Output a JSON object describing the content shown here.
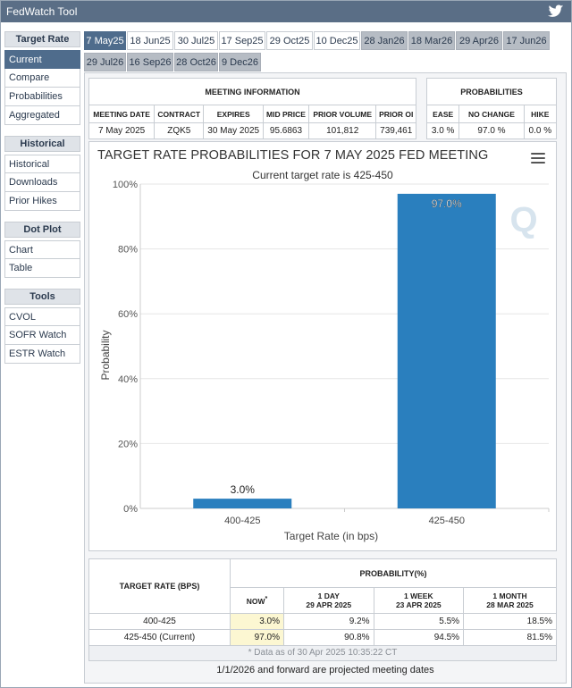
{
  "app": {
    "title": "FedWatch Tool"
  },
  "sidebar": {
    "groups": [
      {
        "header": "Target Rate",
        "items": [
          "Current",
          "Compare",
          "Probabilities",
          "Aggregated"
        ]
      },
      {
        "header": "Historical",
        "items": [
          "Historical",
          "Downloads",
          "Prior Hikes"
        ]
      },
      {
        "header": "Dot Plot",
        "items": [
          "Chart",
          "Table"
        ]
      },
      {
        "header": "Tools",
        "items": [
          "CVOL",
          "SOFR Watch",
          "ESTR Watch"
        ]
      }
    ]
  },
  "tabs": [
    "7 May25",
    "18 Jun25",
    "30 Jul25",
    "17 Sep25",
    "29 Oct25",
    "10 Dec25",
    "28 Jan26",
    "18 Mar26",
    "29 Apr26",
    "17 Jun26",
    "29 Jul26",
    "16 Sep26",
    "28 Oct26",
    "9 Dec26"
  ],
  "meeting_info": {
    "header": "MEETING INFORMATION",
    "columns": [
      "MEETING DATE",
      "CONTRACT",
      "EXPIRES",
      "MID PRICE",
      "PRIOR VOLUME",
      "PRIOR OI"
    ],
    "values": [
      "7 May 2025",
      "ZQK5",
      "30 May 2025",
      "95.6863",
      "101,812",
      "739,461"
    ]
  },
  "probabilities": {
    "header": "PROBABILITIES",
    "columns": [
      "EASE",
      "NO CHANGE",
      "HIKE"
    ],
    "values": [
      "3.0 %",
      "97.0 %",
      "0.0 %"
    ]
  },
  "chart_data": {
    "type": "bar",
    "title": "TARGET RATE PROBABILITIES FOR 7 MAY 2025 FED MEETING",
    "subtitle": "Current target rate is 425-450",
    "xlabel": "Target Rate (in bps)",
    "ylabel": "Probability",
    "categories": [
      "400-425",
      "425-450"
    ],
    "values": [
      3.0,
      97.0
    ],
    "data_labels": [
      "3.0%",
      "97.0%"
    ],
    "ylim": [
      0,
      100
    ],
    "yticks": [
      "0%",
      "20%",
      "40%",
      "60%",
      "80%",
      "100%"
    ],
    "ytick_values": [
      0,
      20,
      40,
      60,
      80,
      100
    ],
    "bar_color": "#2a7fbe",
    "grid": true
  },
  "bottom_table": {
    "col_target": "TARGET RATE (BPS)",
    "col_probability": "PROBABILITY(%)",
    "sub": [
      {
        "label": "NOW",
        "sub": "",
        "mark": "*"
      },
      {
        "label": "1 DAY",
        "sub": "29 APR 2025"
      },
      {
        "label": "1 WEEK",
        "sub": "23 APR 2025"
      },
      {
        "label": "1 MONTH",
        "sub": "28 MAR 2025"
      }
    ],
    "rows": [
      {
        "rate": "400-425",
        "now": "3.0%",
        "d1": "9.2%",
        "w1": "5.5%",
        "m1": "18.5%"
      },
      {
        "rate": "425-450 (Current)",
        "now": "97.0%",
        "d1": "90.8%",
        "w1": "94.5%",
        "m1": "81.5%"
      }
    ],
    "footnote": "* Data as of 30 Apr 2025 10:35:22 CT"
  },
  "projected_note": "1/1/2026 and forward are projected meeting dates"
}
